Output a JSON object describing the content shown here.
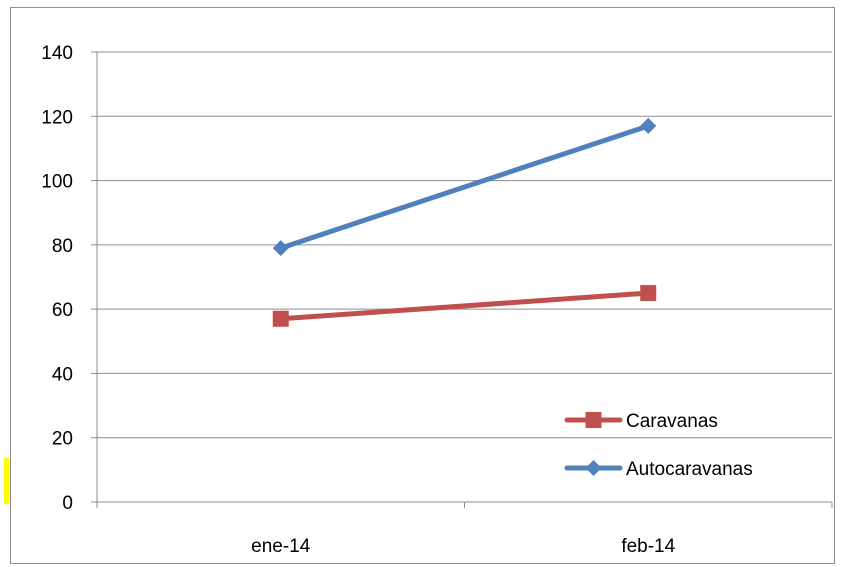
{
  "chart_data": {
    "type": "line",
    "categories": [
      "ene-14",
      "feb-14"
    ],
    "series": [
      {
        "name": "Caravanas",
        "values": [
          57,
          65
        ],
        "color": "#c0504d",
        "marker": "square"
      },
      {
        "name": "Autocaravanas",
        "values": [
          79,
          117
        ],
        "color": "#4f81bd",
        "marker": "diamond"
      }
    ],
    "ylim": [
      0,
      140
    ],
    "yticks": [
      0,
      20,
      40,
      60,
      80,
      100,
      120,
      140
    ],
    "grid": true,
    "legend_position": "bottom-right"
  }
}
